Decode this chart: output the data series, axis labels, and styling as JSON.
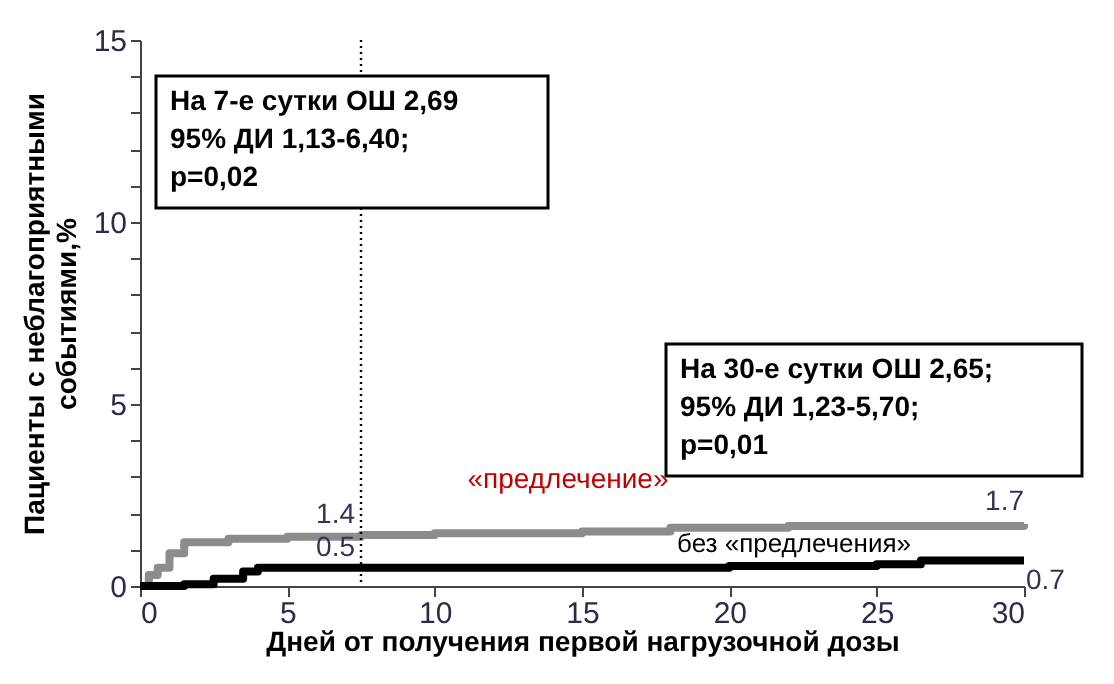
{
  "chart_data": {
    "type": "step",
    "xlabel": "Дней от получения первой нагрузочной дозы",
    "ylabel": "Пациенты с неблагоприятными\nсобытиями,%",
    "xlim": [
      0,
      30
    ],
    "xticks": [
      0,
      5,
      10,
      15,
      20,
      25,
      30
    ],
    "ylim": [
      0,
      15
    ],
    "yticks": [
      0,
      {
        "value": 1,
        "label": null
      },
      {
        "value": 2,
        "label": null
      },
      {
        "value": 3,
        "label": null
      },
      {
        "value": 4,
        "label": null
      },
      5,
      {
        "value": 6,
        "label": null
      },
      {
        "value": 7,
        "label": null
      },
      {
        "value": 8,
        "label": null
      },
      {
        "value": 9,
        "label": null
      },
      10,
      {
        "value": 11,
        "label": null
      },
      {
        "value": 12,
        "label": null
      },
      {
        "value": 13,
        "label": null
      },
      {
        "value": 14,
        "label": null
      },
      15
    ],
    "grid": false,
    "legend": false,
    "series": [
      {
        "name": "«предлечение»",
        "color": "#8c8c8c",
        "x": [
          0,
          0.3,
          0.6,
          1.0,
          1.5,
          3,
          5,
          7.5,
          10,
          15,
          18,
          22,
          30
        ],
        "values": [
          0,
          0.3,
          0.5,
          0.9,
          1.2,
          1.3,
          1.35,
          1.4,
          1.45,
          1.5,
          1.6,
          1.65,
          1.7
        ],
        "value_labels": [
          null,
          null,
          null,
          null,
          null,
          null,
          null,
          "1.4",
          null,
          null,
          null,
          null,
          "1.7"
        ]
      },
      {
        "name": "без «предлечения»",
        "color": "#000000",
        "x": [
          0,
          1.5,
          2.5,
          3.5,
          4,
          7.5,
          20,
          25,
          26.5,
          30
        ],
        "values": [
          0,
          0.05,
          0.2,
          0.4,
          0.5,
          0.5,
          0.55,
          0.6,
          0.7,
          0.7
        ],
        "value_labels": [
          null,
          null,
          null,
          null,
          null,
          "0.5",
          null,
          null,
          null,
          "0.7"
        ]
      }
    ],
    "ref_lines": [
      {
        "axis": "x",
        "value": 7.5,
        "line_style": "dotted",
        "color": "#000000"
      }
    ],
    "annotations": [
      "На 7-е сутки ОШ 2,69\n95% ДИ 1,13-6,40;\np=0,02",
      "На 30-е сутки ОШ 2,65;\n95% ДИ 1,23-5,70;\np=0,01"
    ]
  }
}
